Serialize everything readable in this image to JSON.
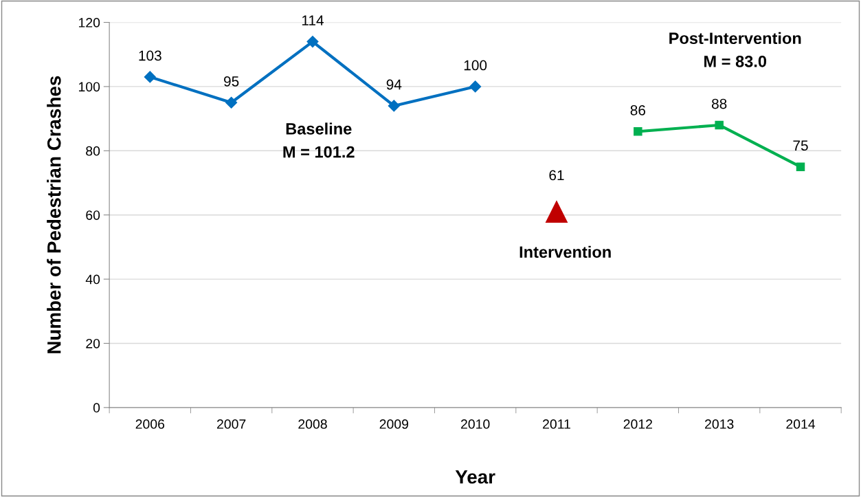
{
  "chart_data": {
    "type": "line",
    "ylabel": "Number of Pedestrian Crashes",
    "xlabel": "Year",
    "categories": [
      "2006",
      "2007",
      "2008",
      "2009",
      "2010",
      "2011",
      "2012",
      "2013",
      "2014"
    ],
    "series": [
      {
        "color": "#0070c0",
        "marker": "diamond",
        "values": [
          103,
          95,
          114,
          94,
          100,
          null,
          null,
          null,
          null
        ]
      },
      {
        "type": "scatter",
        "color": "#c00000",
        "marker": "triangle",
        "values": [
          null,
          null,
          null,
          null,
          null,
          61,
          null,
          null,
          null
        ]
      },
      {
        "color": "#00b050",
        "marker": "square",
        "values": [
          null,
          null,
          null,
          null,
          null,
          null,
          86,
          88,
          75
        ]
      }
    ],
    "annotations": [
      "Baseline",
      "M = 101.2",
      "Intervention",
      "Post-Intervention",
      "M = 83.0"
    ],
    "ylim": [
      0,
      120
    ],
    "yticks": [
      0,
      20,
      40,
      60,
      80,
      100,
      120
    ],
    "grid": "y",
    "data_labels": true,
    "line_style": "solid",
    "legend": false
  }
}
